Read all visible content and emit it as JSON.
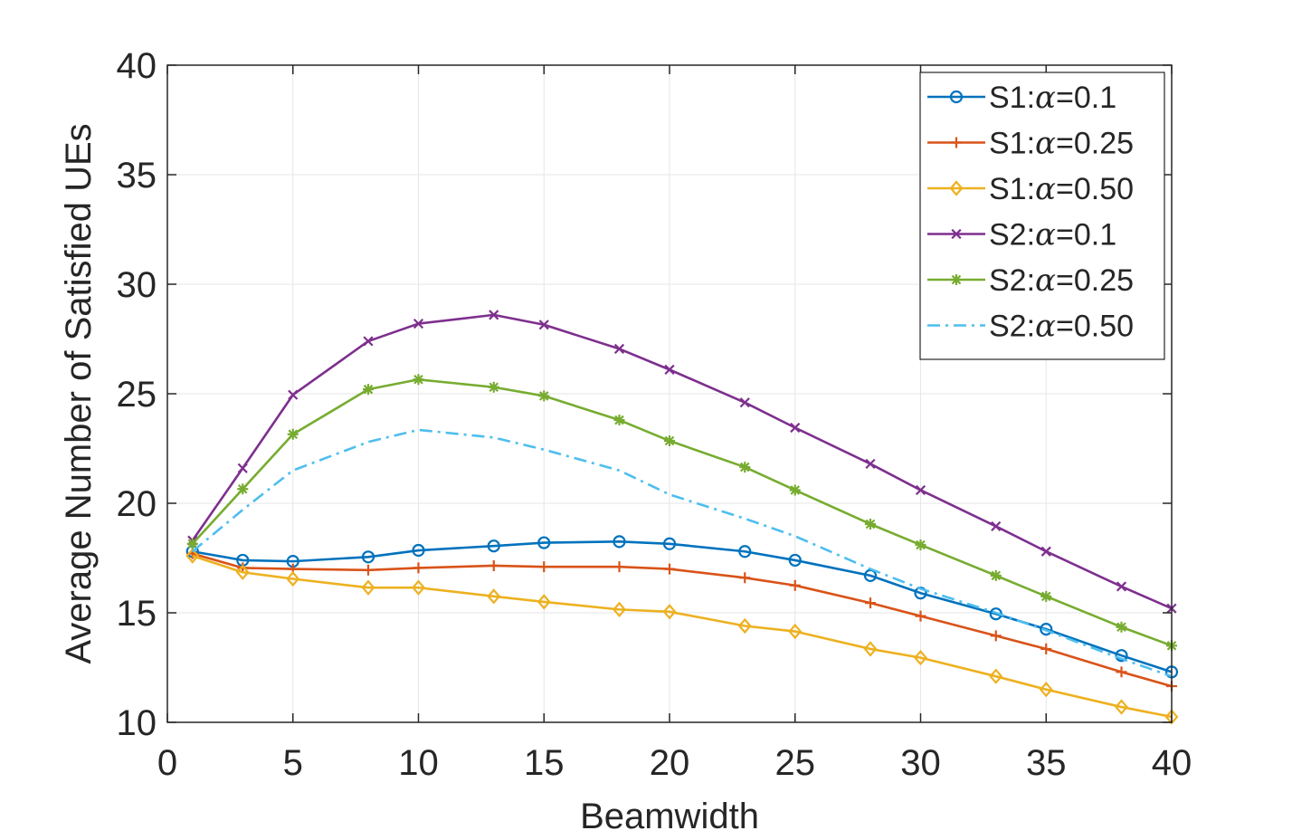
{
  "chart_data": {
    "type": "line",
    "title": "",
    "xlabel": "Beamwidth",
    "ylabel": "Average Number of Satisfied UEs",
    "xlim": [
      0,
      40
    ],
    "ylim": [
      10,
      40
    ],
    "xticks": [
      0,
      5,
      10,
      15,
      20,
      25,
      30,
      35,
      40
    ],
    "yticks": [
      10,
      15,
      20,
      25,
      30,
      35,
      40
    ],
    "grid": true,
    "legend_position": "top-right",
    "x": [
      1,
      3,
      5,
      8,
      10,
      13,
      15,
      18,
      20,
      23,
      25,
      28,
      30,
      33,
      35,
      38,
      40
    ],
    "series": [
      {
        "name": "S1:α=0.1",
        "prefix": "S1:",
        "param": "α",
        "suffix": "=0.1",
        "color": "#0072BD",
        "marker": "circle",
        "line_style": "solid",
        "values": [
          17.8,
          17.4,
          17.35,
          17.55,
          17.85,
          18.05,
          18.2,
          18.25,
          18.15,
          17.8,
          17.4,
          16.7,
          15.9,
          14.95,
          14.25,
          13.05,
          12.3
        ]
      },
      {
        "name": "S1:α=0.25",
        "prefix": "S1:",
        "param": "α",
        "suffix": "=0.25",
        "color": "#D95319",
        "marker": "plus",
        "line_style": "solid",
        "values": [
          17.7,
          17.05,
          17.0,
          16.95,
          17.05,
          17.15,
          17.1,
          17.1,
          17.0,
          16.6,
          16.25,
          15.45,
          14.85,
          13.95,
          13.35,
          12.3,
          11.65
        ]
      },
      {
        "name": "S1:α=0.50",
        "prefix": "S1:",
        "param": "α",
        "suffix": "=0.50",
        "color": "#EDB120",
        "marker": "diamond",
        "line_style": "solid",
        "values": [
          17.6,
          16.85,
          16.55,
          16.15,
          16.15,
          15.75,
          15.5,
          15.15,
          15.05,
          14.4,
          14.15,
          13.35,
          12.95,
          12.1,
          11.5,
          10.7,
          10.25
        ]
      },
      {
        "name": "S2:α=0.1",
        "prefix": "S2:",
        "param": "α",
        "suffix": "=0.1",
        "color": "#7E2F8E",
        "marker": "x",
        "line_style": "solid",
        "values": [
          18.3,
          21.6,
          24.95,
          27.4,
          28.2,
          28.6,
          28.15,
          27.05,
          26.1,
          24.6,
          23.45,
          21.8,
          20.6,
          18.95,
          17.8,
          16.2,
          15.2
        ]
      },
      {
        "name": "S2:α=0.25",
        "prefix": "S2:",
        "param": "α",
        "suffix": "=0.25",
        "color": "#77AC30",
        "marker": "asterisk",
        "line_style": "solid",
        "values": [
          18.15,
          20.65,
          23.15,
          25.2,
          25.65,
          25.3,
          24.9,
          23.8,
          22.85,
          21.65,
          20.6,
          19.05,
          18.1,
          16.7,
          15.75,
          14.35,
          13.5
        ]
      },
      {
        "name": "S2:α=0.50",
        "prefix": "S2:",
        "param": "α",
        "suffix": "=0.50",
        "color": "#4DBEEE",
        "marker": "none",
        "line_style": "dashdot",
        "values": [
          17.8,
          19.7,
          21.5,
          22.8,
          23.35,
          23.0,
          22.45,
          21.5,
          20.4,
          19.3,
          18.5,
          17.0,
          16.1,
          15.0,
          14.2,
          12.9,
          12.1
        ]
      }
    ]
  }
}
